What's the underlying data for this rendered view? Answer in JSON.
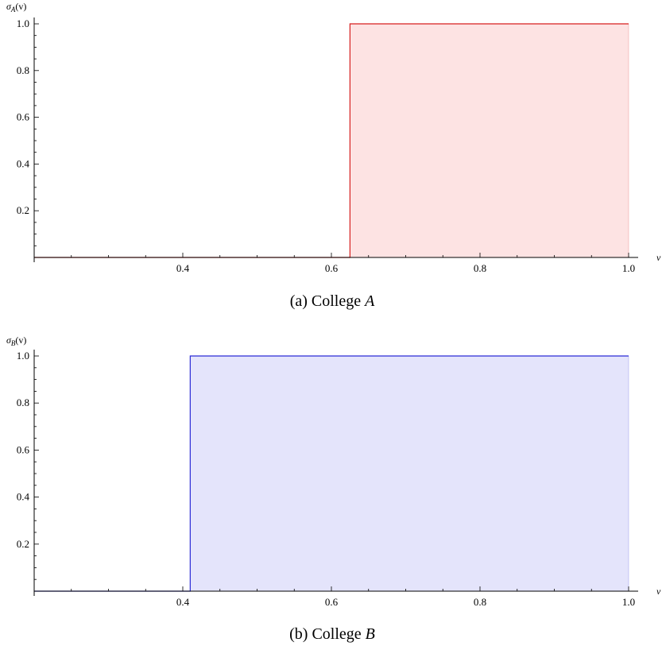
{
  "chart_data": [
    {
      "type": "area",
      "ylabel": {
        "base": "σ",
        "sub": "A",
        "suffix": "(v)"
      },
      "xlabel": "ν",
      "caption": {
        "prefix": "(a)  College ",
        "emph": "A"
      },
      "xlim": [
        0.2,
        1.0
      ],
      "ylim": [
        0,
        1.0
      ],
      "x_ticks": [
        0.4,
        0.6,
        0.8,
        1.0
      ],
      "x_tick_labels": [
        "0.4",
        "0.6",
        "0.8",
        "1.0"
      ],
      "y_ticks": [
        0.2,
        0.4,
        0.6,
        0.8,
        1.0
      ],
      "y_tick_labels": [
        "0.2",
        "0.4",
        "0.6",
        "0.8",
        "1.0"
      ],
      "series": [
        {
          "x": [
            0.2,
            0.625,
            0.625,
            1.0
          ],
          "y": [
            0,
            0,
            1.0,
            1.0
          ],
          "color": "#d81f1f",
          "fill": "#fde3e3"
        }
      ]
    },
    {
      "type": "area",
      "ylabel": {
        "base": "σ",
        "sub": "B",
        "suffix": "(v)"
      },
      "xlabel": "ν",
      "caption": {
        "prefix": "(b)  College ",
        "emph": "B"
      },
      "xlim": [
        0.2,
        1.0
      ],
      "ylim": [
        0,
        1.0
      ],
      "x_ticks": [
        0.4,
        0.6,
        0.8,
        1.0
      ],
      "x_tick_labels": [
        "0.4",
        "0.6",
        "0.8",
        "1.0"
      ],
      "y_ticks": [
        0.2,
        0.4,
        0.6,
        0.8,
        1.0
      ],
      "y_tick_labels": [
        "0.2",
        "0.4",
        "0.6",
        "0.8",
        "1.0"
      ],
      "series": [
        {
          "x": [
            0.2,
            0.41,
            0.41,
            1.0
          ],
          "y": [
            0,
            0,
            1.0,
            1.0
          ],
          "color": "#2a2ad6",
          "fill": "#e4e4fb"
        }
      ]
    }
  ]
}
